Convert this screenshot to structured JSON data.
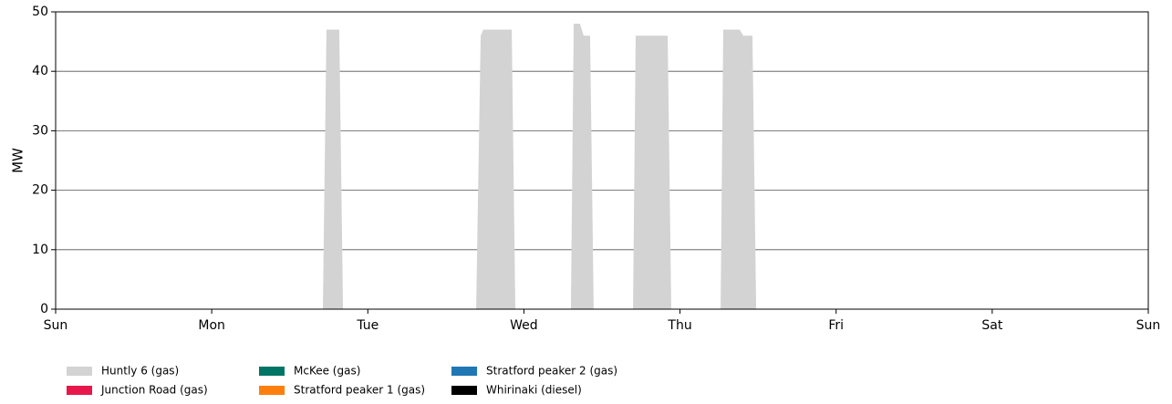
{
  "chart_data": {
    "type": "stacked-area",
    "y_label": "MW",
    "x": [
      0,
      1.712,
      1.735,
      1.817,
      1.841,
      2.694,
      2.723,
      2.74,
      2.922,
      2.945,
      3.301,
      3.319,
      3.359,
      3.383,
      3.424,
      3.447,
      3.699,
      3.716,
      3.921,
      3.944,
      4.26,
      4.277,
      4.382,
      4.406,
      4.464,
      4.488,
      7
    ],
    "series": [
      {
        "name": "Huntly 6 (gas)",
        "color": "#d3d3d3",
        "values": [
          0,
          0,
          47,
          47,
          0,
          0,
          46,
          47,
          47,
          0,
          0,
          48,
          48,
          46,
          46,
          0,
          0,
          46,
          46,
          0,
          0,
          47,
          47,
          46,
          46,
          0,
          0
        ]
      },
      {
        "name": "Junction Road (gas)",
        "color": "#e8174b",
        "values": [
          0,
          0,
          0,
          0,
          0,
          0,
          0,
          0,
          0,
          0,
          0,
          0,
          0,
          0,
          0,
          0,
          0,
          0,
          0,
          0,
          0,
          0,
          0,
          0,
          0,
          0,
          0
        ]
      },
      {
        "name": "McKee (gas)",
        "color": "#007566",
        "values": [
          0,
          0,
          0,
          0,
          0,
          0,
          0,
          0,
          0,
          0,
          0,
          0,
          0,
          0,
          0,
          0,
          0,
          0,
          0,
          0,
          0,
          0,
          0,
          0,
          0,
          0,
          0
        ]
      },
      {
        "name": "Stratford peaker 1 (gas)",
        "color": "#ff7f0e",
        "values": [
          0,
          0,
          0,
          0,
          0,
          0,
          0,
          0,
          0,
          0,
          0,
          0,
          0,
          0,
          0,
          0,
          0,
          0,
          0,
          0,
          0,
          0,
          0,
          0,
          0,
          0,
          0
        ]
      },
      {
        "name": "Stratford peaker 2 (gas)",
        "color": "#1f77b4",
        "values": [
          0,
          0,
          0,
          0,
          0,
          0,
          0,
          0,
          0,
          0,
          0,
          0,
          0,
          0,
          0,
          0,
          0,
          0,
          0,
          0,
          0,
          0,
          0,
          0,
          0,
          0,
          0
        ]
      },
      {
        "name": "Whirinaki (diesel)",
        "color": "#000000",
        "values": [
          0,
          0,
          0,
          0,
          0,
          0,
          0,
          0,
          0,
          0,
          0,
          0,
          0,
          0,
          0,
          0,
          0,
          0,
          0,
          0,
          0,
          0,
          0,
          0,
          0,
          0,
          0
        ]
      }
    ],
    "xlim": [
      0,
      7
    ],
    "xticks": [
      {
        "value": 0,
        "label": "Sun"
      },
      {
        "value": 1,
        "label": "Mon"
      },
      {
        "value": 2,
        "label": "Tue"
      },
      {
        "value": 3,
        "label": "Wed"
      },
      {
        "value": 4,
        "label": "Thu"
      },
      {
        "value": 5,
        "label": "Fri"
      },
      {
        "value": 6,
        "label": "Sat"
      },
      {
        "value": 7,
        "label": "Sun"
      }
    ],
    "ylim": [
      0,
      50
    ],
    "yticks": [
      0,
      10,
      20,
      30,
      40,
      50
    ],
    "grid": true
  }
}
